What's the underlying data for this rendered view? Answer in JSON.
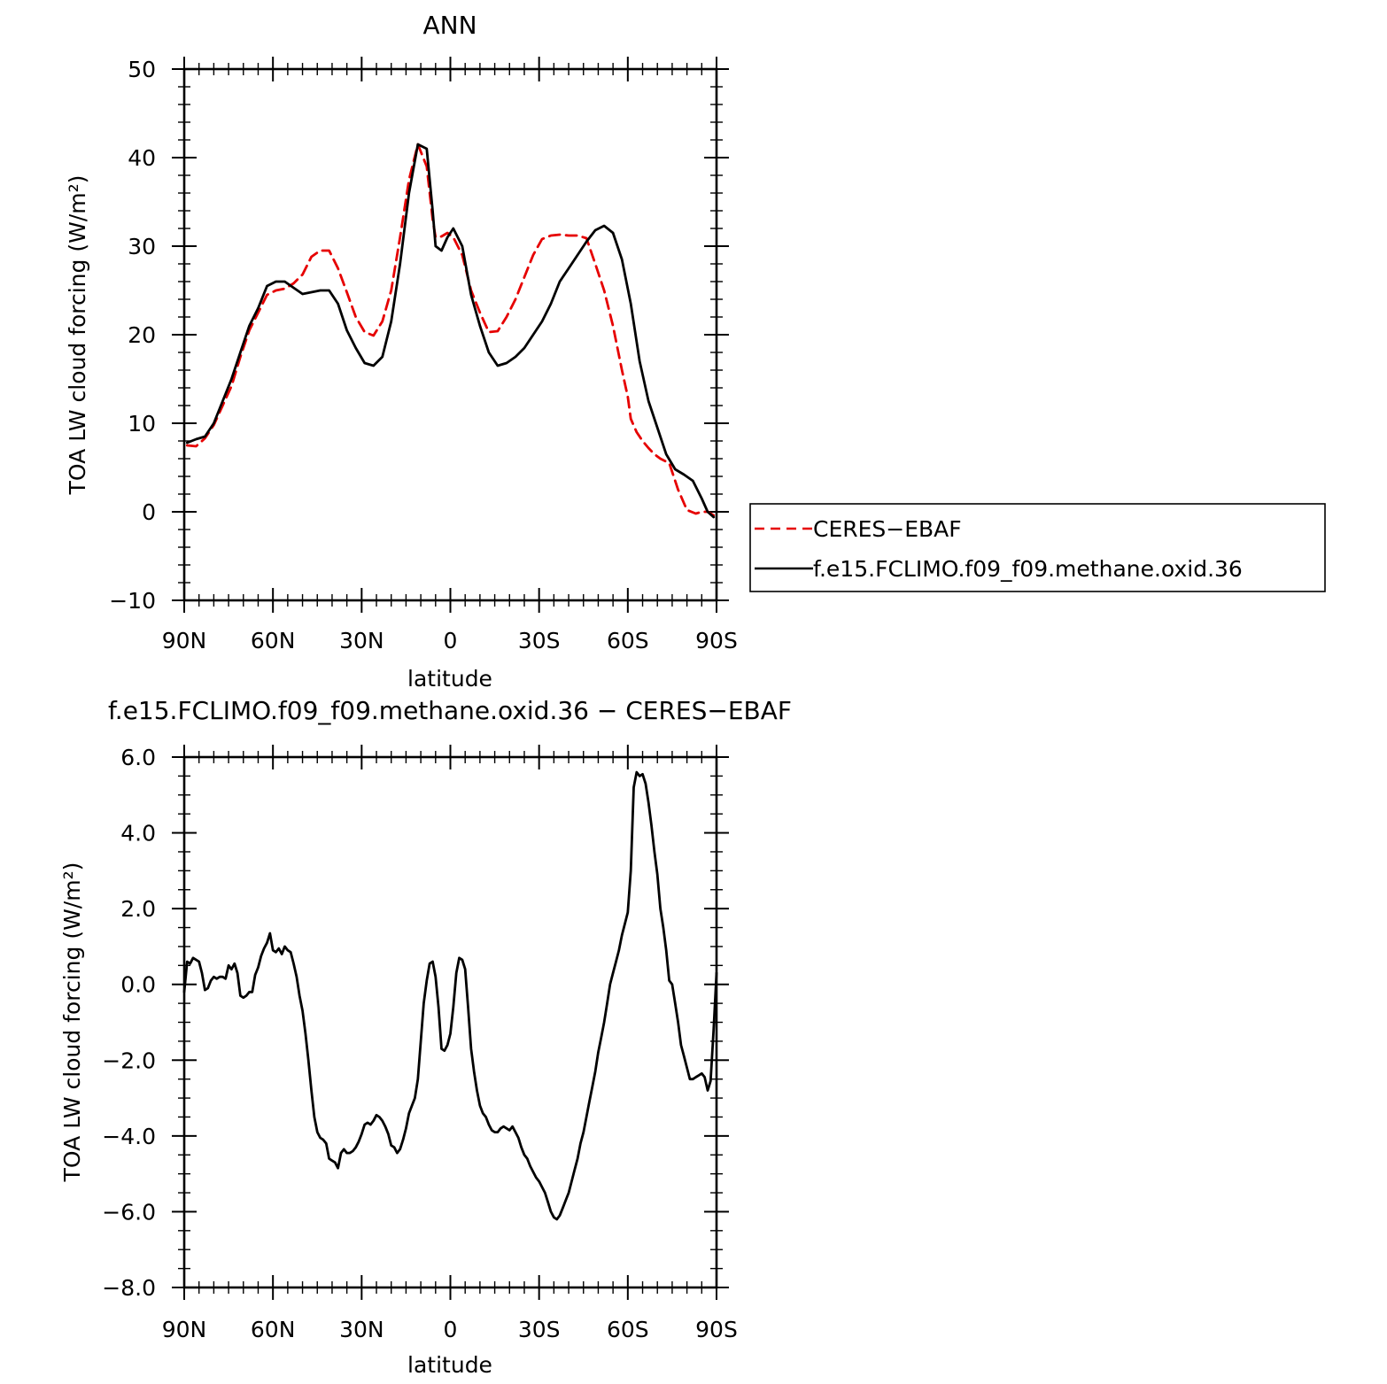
{
  "chart_data": [
    {
      "type": "line",
      "title": "ANN",
      "xlabel": "latitude",
      "ylabel": "TOA LW cloud forcing (W/m²)",
      "xlim": [
        90,
        -90
      ],
      "ylim": [
        -10,
        50
      ],
      "xticks": [
        90,
        60,
        30,
        0,
        -30,
        -60,
        -90
      ],
      "xtick_labels": [
        "90N",
        "60N",
        "30N",
        "0",
        "30S",
        "60S",
        "90S"
      ],
      "yticks": [
        -10,
        0,
        10,
        20,
        30,
        40,
        50
      ],
      "ytick_labels": [
        "−10",
        "0",
        "10",
        "20",
        "30",
        "40",
        "50"
      ],
      "legend_position": "right",
      "series": [
        {
          "name": "CERES−EBAF",
          "color": "#e60000",
          "dash": "dashed",
          "x": [
            89,
            86,
            83,
            80,
            77,
            74,
            71,
            68,
            65,
            62,
            59,
            56,
            53,
            50,
            47,
            44,
            41,
            38,
            35,
            32,
            29,
            26,
            23,
            20,
            17,
            14,
            11,
            8,
            6,
            5,
            3,
            1,
            -1,
            -4,
            -7,
            -10,
            -13,
            -16,
            -19,
            -22,
            -25,
            -28,
            -31,
            -34,
            -37,
            -40,
            -43,
            -46,
            -49,
            -52,
            -55,
            -58,
            -60,
            -61,
            -63,
            -65,
            -67,
            -69,
            -71,
            -74,
            -77,
            -80,
            -83,
            -85,
            -87,
            -89
          ],
          "y": [
            7.5,
            7.4,
            8.3,
            9.8,
            12.0,
            14.2,
            17.5,
            20.5,
            22.5,
            24.5,
            25.0,
            25.2,
            25.8,
            26.8,
            28.8,
            29.5,
            29.5,
            27.5,
            24.8,
            22.0,
            20.3,
            19.9,
            21.5,
            25.0,
            31.0,
            37.5,
            41.5,
            39.0,
            33.0,
            31.0,
            31.1,
            31.5,
            31.0,
            29.0,
            25.0,
            22.5,
            20.3,
            20.4,
            22.0,
            24.0,
            26.5,
            29.0,
            30.8,
            31.2,
            31.3,
            31.2,
            31.2,
            30.9,
            28.0,
            25.0,
            21.0,
            16.0,
            13.0,
            10.5,
            9.0,
            8.0,
            7.2,
            6.5,
            6.0,
            5.5,
            2.5,
            0.2,
            -0.2,
            0.0,
            0.0,
            -0.4
          ]
        },
        {
          "name": "f.e15.FCLIMO.f09_f09.methane.oxid.36",
          "color": "#000000",
          "dash": "solid",
          "x": [
            89,
            86,
            83,
            80,
            77,
            74,
            71,
            68,
            65,
            62,
            59,
            56,
            53,
            50,
            47,
            44,
            41,
            38,
            35,
            32,
            29,
            26,
            23,
            20,
            17,
            14,
            11,
            8,
            6,
            5,
            3,
            1,
            -1,
            -4,
            -7,
            -10,
            -13,
            -16,
            -19,
            -22,
            -25,
            -28,
            -31,
            -34,
            -37,
            -40,
            -43,
            -46,
            -49,
            -52,
            -55,
            -58,
            -61,
            -64,
            -67,
            -70,
            -73,
            -76,
            -79,
            -82,
            -85,
            -87,
            -89
          ],
          "y": [
            7.8,
            8.2,
            8.5,
            10.0,
            12.5,
            15.0,
            18.0,
            21.0,
            23.0,
            25.5,
            26.0,
            26.0,
            25.3,
            24.6,
            24.8,
            25.0,
            25.0,
            23.5,
            20.5,
            18.5,
            16.8,
            16.5,
            17.5,
            21.5,
            28.0,
            36.0,
            41.5,
            41.0,
            34.0,
            30.0,
            29.5,
            31.0,
            32.0,
            30.0,
            24.5,
            21.0,
            18.0,
            16.5,
            16.8,
            17.5,
            18.5,
            20.0,
            21.5,
            23.5,
            26.0,
            27.5,
            29.0,
            30.5,
            31.8,
            32.3,
            31.5,
            28.5,
            23.5,
            17.0,
            12.5,
            9.5,
            6.5,
            4.8,
            4.2,
            3.5,
            1.5,
            0.0,
            -0.6
          ]
        }
      ]
    },
    {
      "type": "line",
      "title": "f.e15.FCLIMO.f09_f09.methane.oxid.36 − CERES−EBAF",
      "xlabel": "latitude",
      "ylabel": "TOA LW cloud forcing (W/m²)",
      "xlim": [
        90,
        -90
      ],
      "ylim": [
        -8,
        6
      ],
      "xticks": [
        90,
        60,
        30,
        0,
        -30,
        -60,
        -90
      ],
      "xtick_labels": [
        "90N",
        "60N",
        "30N",
        "0",
        "30S",
        "60S",
        "90S"
      ],
      "yticks": [
        -8,
        -6,
        -4,
        -2,
        0,
        2,
        4,
        6
      ],
      "ytick_labels": [
        "−8.0",
        "−6.0",
        "−4.0",
        "−2.0",
        "0.0",
        "2.0",
        "4.0",
        "6.0"
      ],
      "series": [
        {
          "color": "#000000",
          "dash": "solid",
          "x": [
            90,
            89,
            88,
            87,
            86,
            85,
            84,
            83,
            82,
            81,
            80,
            79,
            78,
            77,
            76,
            75,
            74,
            73,
            72,
            71,
            70,
            69,
            68,
            67,
            66,
            65,
            64,
            63,
            62,
            61,
            60,
            59,
            58,
            57,
            56,
            55,
            54,
            53,
            52,
            51,
            50,
            49,
            48,
            47,
            46,
            45,
            44,
            43,
            42,
            41,
            40,
            39,
            38,
            37,
            36,
            35,
            34,
            33,
            32,
            31,
            30,
            29,
            28,
            27,
            26,
            25,
            24,
            23,
            22,
            21,
            20,
            19,
            18,
            17,
            16,
            15,
            14,
            13,
            12,
            11,
            10,
            9,
            8,
            7,
            6,
            5,
            4,
            3,
            2,
            1,
            0,
            -1,
            -2,
            -3,
            -4,
            -5,
            -6,
            -7,
            -8,
            -9,
            -10,
            -11,
            -12,
            -13,
            -14,
            -15,
            -16,
            -17,
            -18,
            -19,
            -20,
            -21,
            -22,
            -23,
            -24,
            -25,
            -26,
            -27,
            -28,
            -29,
            -30,
            -31,
            -32,
            -33,
            -34,
            -35,
            -36,
            -37,
            -38,
            -39,
            -40,
            -41,
            -42,
            -43,
            -44,
            -45,
            -46,
            -47,
            -48,
            -49,
            -50,
            -51,
            -52,
            -53,
            -54,
            -55,
            -56,
            -57,
            -58,
            -59,
            -60,
            -61,
            -62,
            -63,
            -64,
            -65,
            -66,
            -67,
            -68,
            -69,
            -70,
            -71,
            -72,
            -73,
            -74,
            -75,
            -76,
            -77,
            -78,
            -79,
            -80,
            -81,
            -82,
            -83,
            -84,
            -85,
            -86,
            -87,
            -88,
            -89,
            -90
          ],
          "y": [
            -0.2,
            0.6,
            0.55,
            0.7,
            0.65,
            0.6,
            0.3,
            -0.15,
            -0.1,
            0.1,
            0.2,
            0.15,
            0.2,
            0.2,
            0.15,
            0.5,
            0.4,
            0.55,
            0.3,
            -0.3,
            -0.35,
            -0.3,
            -0.2,
            -0.2,
            0.25,
            0.45,
            0.75,
            0.95,
            1.1,
            1.35,
            0.9,
            0.85,
            0.95,
            0.8,
            1.0,
            0.9,
            0.85,
            0.55,
            0.2,
            -0.3,
            -0.7,
            -1.3,
            -2.0,
            -2.8,
            -3.5,
            -3.9,
            -4.05,
            -4.1,
            -4.2,
            -4.6,
            -4.65,
            -4.7,
            -4.85,
            -4.45,
            -4.35,
            -4.45,
            -4.45,
            -4.4,
            -4.3,
            -4.15,
            -3.95,
            -3.7,
            -3.65,
            -3.7,
            -3.6,
            -3.45,
            -3.5,
            -3.6,
            -3.75,
            -3.95,
            -4.25,
            -4.3,
            -4.45,
            -4.35,
            -4.1,
            -3.8,
            -3.4,
            -3.2,
            -3.0,
            -2.5,
            -1.5,
            -0.5,
            0.1,
            0.55,
            0.6,
            0.2,
            -0.6,
            -1.7,
            -1.75,
            -1.6,
            -1.3,
            -0.6,
            0.3,
            0.7,
            0.65,
            0.4,
            -0.6,
            -1.7,
            -2.3,
            -2.8,
            -3.2,
            -3.4,
            -3.5,
            -3.7,
            -3.85,
            -3.9,
            -3.9,
            -3.8,
            -3.75,
            -3.8,
            -3.85,
            -3.75,
            -3.9,
            -4.05,
            -4.3,
            -4.5,
            -4.6,
            -4.8,
            -4.95,
            -5.1,
            -5.2,
            -5.35,
            -5.5,
            -5.75,
            -6.0,
            -6.15,
            -6.2,
            -6.1,
            -5.9,
            -5.7,
            -5.5,
            -5.2,
            -4.9,
            -4.6,
            -4.2,
            -3.9,
            -3.5,
            -3.1,
            -2.7,
            -2.3,
            -1.8,
            -1.4,
            -1.0,
            -0.5,
            0.0,
            0.3,
            0.6,
            0.9,
            1.3,
            1.6,
            1.9,
            3.0,
            5.2,
            5.6,
            5.5,
            5.55,
            5.3,
            4.8,
            4.2,
            3.5,
            2.9,
            2.0,
            1.5,
            0.9,
            0.1,
            0.0,
            -0.5,
            -1.0,
            -1.6,
            -1.9,
            -2.2,
            -2.5,
            -2.5,
            -2.45,
            -2.4,
            -2.35,
            -2.45,
            -2.8,
            -2.55,
            -1.2,
            0.3
          ]
        }
      ]
    }
  ]
}
